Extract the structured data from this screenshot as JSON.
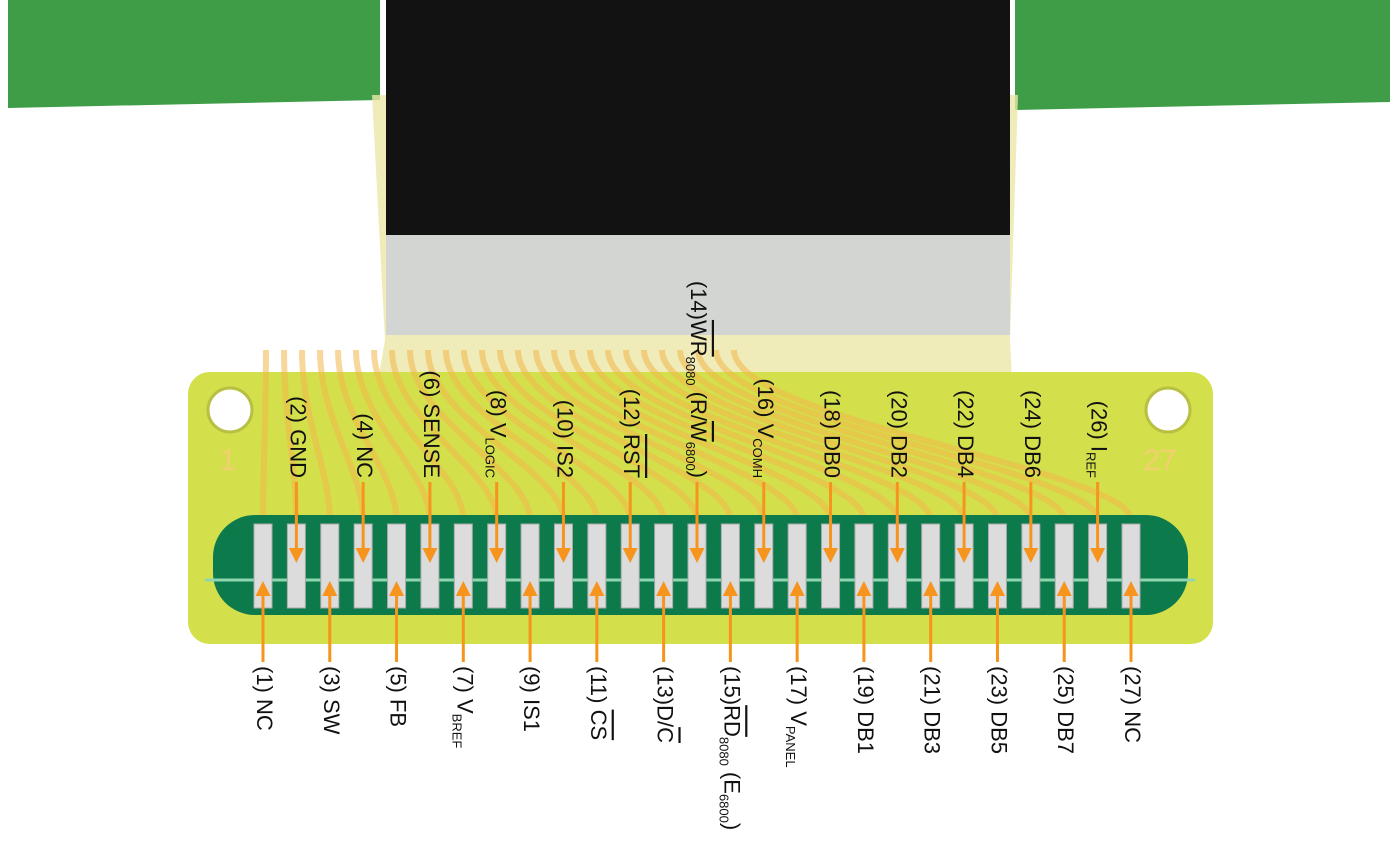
{
  "board_marks": [
    "1",
    "27"
  ],
  "pins": [
    {
      "segments": [
        {
          "text": "(1) NC"
        }
      ]
    },
    {
      "segments": [
        {
          "text": "(2) GND"
        }
      ]
    },
    {
      "segments": [
        {
          "text": "(3) SW"
        }
      ]
    },
    {
      "segments": [
        {
          "text": "(4) NC"
        }
      ]
    },
    {
      "segments": [
        {
          "text": "(5) FB"
        }
      ]
    },
    {
      "segments": [
        {
          "text": "(6) SENSE"
        }
      ]
    },
    {
      "segments": [
        {
          "text": "(7) V"
        },
        {
          "text": "BREF",
          "style": "sub"
        }
      ]
    },
    {
      "segments": [
        {
          "text": "(8) V"
        },
        {
          "text": "LOGIC",
          "style": "sub"
        }
      ]
    },
    {
      "segments": [
        {
          "text": "(9) IS1"
        }
      ]
    },
    {
      "segments": [
        {
          "text": "(10) IS2"
        }
      ]
    },
    {
      "segments": [
        {
          "text": "(11) "
        },
        {
          "text": "CS",
          "style": "over"
        }
      ]
    },
    {
      "segments": [
        {
          "text": "(12) "
        },
        {
          "text": "RST",
          "style": "over"
        }
      ]
    },
    {
      "segments": [
        {
          "text": "(13)D/"
        },
        {
          "text": "C",
          "style": "over"
        }
      ]
    },
    {
      "segments": [
        {
          "text": "(14)"
        },
        {
          "text": "WR",
          "style": "over"
        },
        {
          "text": "8080",
          "style": "sub"
        },
        {
          "text": " (R/"
        },
        {
          "text": "W",
          "style": "over"
        },
        {
          "text": "6800",
          "style": "sub"
        },
        {
          "text": ")"
        }
      ]
    },
    {
      "segments": [
        {
          "text": "(15)"
        },
        {
          "text": "RD",
          "style": "over"
        },
        {
          "text": "8080",
          "style": "sub"
        },
        {
          "text": " (E"
        },
        {
          "text": "6800",
          "style": "sub"
        },
        {
          "text": ")"
        }
      ]
    },
    {
      "segments": [
        {
          "text": "(16) V"
        },
        {
          "text": "COMH",
          "style": "sub"
        }
      ]
    },
    {
      "segments": [
        {
          "text": "(17) V"
        },
        {
          "text": "PANEL",
          "style": "sub"
        }
      ]
    },
    {
      "segments": [
        {
          "text": "(18) DB0"
        }
      ]
    },
    {
      "segments": [
        {
          "text": "(19) DB1"
        }
      ]
    },
    {
      "segments": [
        {
          "text": "(20) DB2"
        }
      ]
    },
    {
      "segments": [
        {
          "text": "(21) DB3"
        }
      ]
    },
    {
      "segments": [
        {
          "text": "(22) DB4"
        }
      ]
    },
    {
      "segments": [
        {
          "text": "(23) DB5"
        }
      ]
    },
    {
      "segments": [
        {
          "text": "(24) DB6"
        }
      ]
    },
    {
      "segments": [
        {
          "text": "(25) DB7"
        }
      ]
    },
    {
      "segments": [
        {
          "text": "(26) I"
        },
        {
          "text": "REF",
          "style": "sub"
        }
      ]
    },
    {
      "segments": [
        {
          "text": "(27) NC"
        }
      ]
    }
  ]
}
